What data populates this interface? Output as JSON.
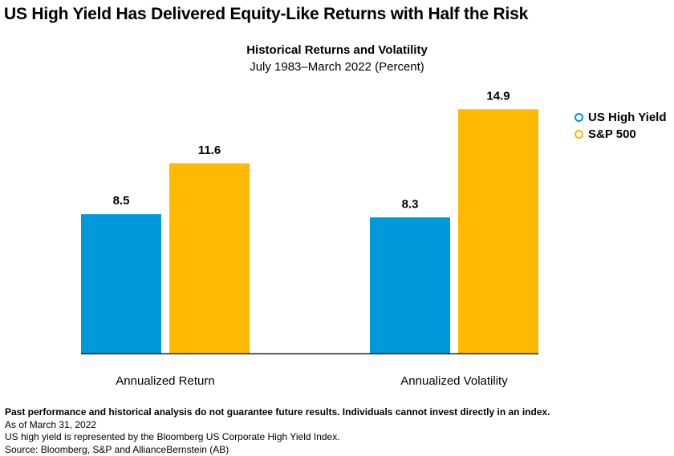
{
  "headline": "US High Yield Has Delivered Equity-Like Returns with Half the Risk",
  "chart_data": {
    "type": "bar",
    "title": "Historical Returns and Volatility",
    "subtitle": "July 1983–March 2022 (Percent)",
    "categories": [
      "Annualized Return",
      "Annualized Volatility"
    ],
    "series": [
      {
        "name": "US High Yield",
        "values": [
          8.5,
          8.3
        ],
        "color": "#0098DB"
      },
      {
        "name": "S&P 500",
        "values": [
          11.6,
          14.9
        ],
        "color": "#FDBA00"
      }
    ],
    "data_labels": [
      [
        "8.5",
        "11.6"
      ],
      [
        "8.3",
        "14.9"
      ]
    ],
    "ylim": [
      0,
      16
    ],
    "grid": false,
    "legend": "top-right"
  },
  "footnotes": {
    "disclaimer": "Past performance and historical analysis do not guarantee future results. Individuals cannot invest directly in an index.",
    "as_of": "As of March 31, 2022",
    "index_note": "US high yield is represented by the Bloomberg US Corporate High Yield Index.",
    "source": "Source: Bloomberg, S&P and AllianceBernstein (AB)"
  }
}
